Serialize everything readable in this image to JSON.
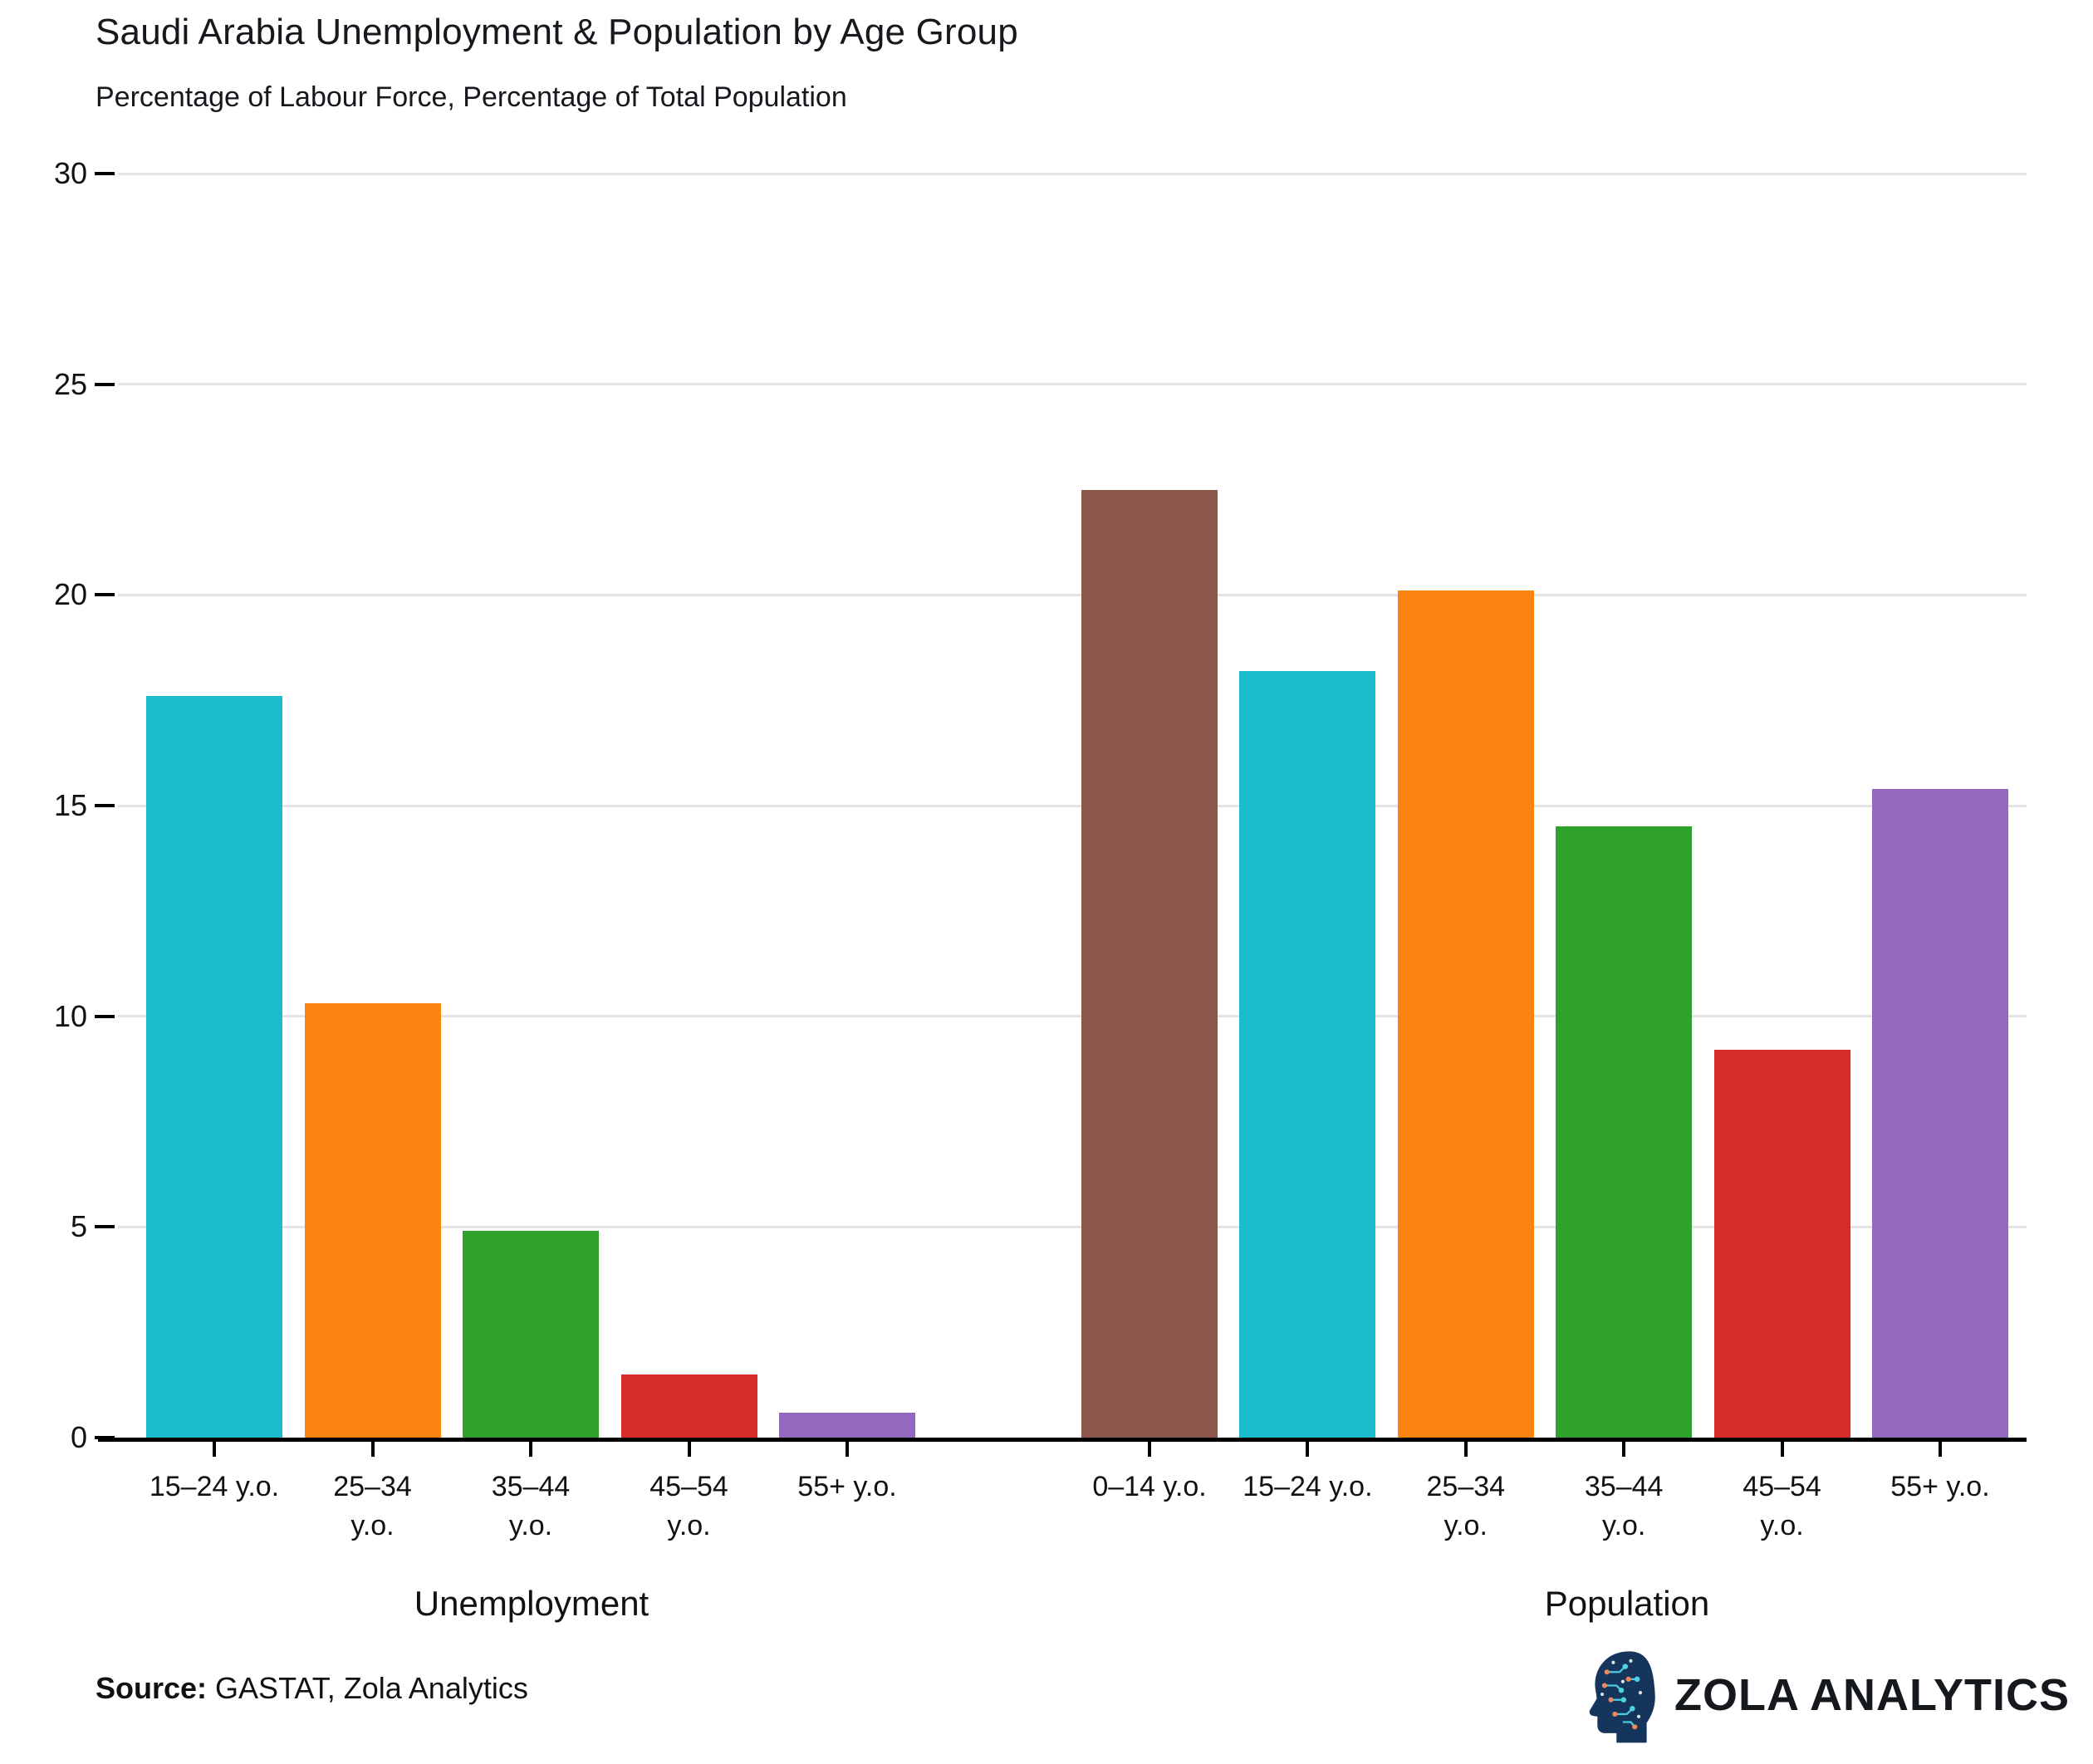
{
  "title": "Saudi Arabia Unemployment & Population by Age Group",
  "subtitle": "Percentage of Labour Force, Percentage of Total Population",
  "source": {
    "label": "Source:",
    "text": "GASTAT, Zola Analytics"
  },
  "brand": {
    "name": "ZOLA ANALYTICS"
  },
  "colors": {
    "grid": "#E4E4E4",
    "axis": "#000000",
    "text": "#111111",
    "bar_cyan": "#1ABCCD",
    "bar_orange": "#FB830F",
    "bar_green": "#2EA22C",
    "bar_red": "#D62B28",
    "bar_purple": "#9368BE",
    "bar_brown": "#8D564B",
    "brand_navy": "#16355C",
    "brand_cyan": "#4FD2E4",
    "brand_orange": "#F0875C"
  },
  "chart_data": {
    "type": "bar",
    "title": "Saudi Arabia Unemployment & Population by Age Group",
    "subtitle": "Percentage of Labour Force, Percentage of Total Population",
    "xlabel": "",
    "ylabel": "",
    "ylim": [
      0,
      30
    ],
    "yticks": [
      0,
      5,
      10,
      15,
      20,
      25,
      30
    ],
    "grid": true,
    "legend": "none",
    "groups": [
      {
        "label": "Unemployment",
        "categories": [
          "15–24 y.o.",
          "25–34 y.o.",
          "35–44 y.o.",
          "45–54 y.o.",
          "55+ y.o."
        ],
        "category_lines": [
          [
            "15–24 y.o."
          ],
          [
            "25–34",
            "y.o."
          ],
          [
            "35–44",
            "y.o."
          ],
          [
            "45–54",
            "y.o."
          ],
          [
            "55+ y.o."
          ]
        ],
        "values": [
          17.6,
          10.3,
          4.9,
          1.5,
          0.6
        ],
        "bar_colors": [
          "#1ABCCD",
          "#FB830F",
          "#2EA22C",
          "#D62B28",
          "#9368BE"
        ]
      },
      {
        "label": "Population",
        "categories": [
          "0–14 y.o.",
          "15–24 y.o.",
          "25–34 y.o.",
          "35–44 y.o.",
          "45–54 y.o.",
          "55+ y.o."
        ],
        "category_lines": [
          [
            "0–14 y.o."
          ],
          [
            "15–24 y.o."
          ],
          [
            "25–34",
            "y.o."
          ],
          [
            "35–44",
            "y.o."
          ],
          [
            "45–54",
            "y.o."
          ],
          [
            "55+ y.o."
          ]
        ],
        "values": [
          22.5,
          18.2,
          20.1,
          14.5,
          9.2,
          15.4
        ],
        "bar_colors": [
          "#8D564B",
          "#1ABCCD",
          "#FB830F",
          "#2EA22C",
          "#D62B28",
          "#9368BE"
        ]
      }
    ]
  }
}
